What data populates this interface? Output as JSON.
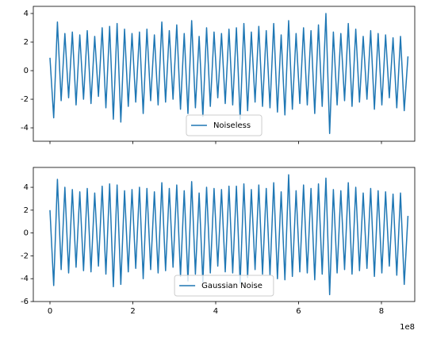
{
  "chart_data": [
    {
      "type": "line",
      "x": [
        0,
        9000000,
        18000000,
        27000000,
        36000000,
        45000000,
        54000000,
        63000000,
        72000000,
        81000000,
        90000000,
        99000000,
        108000000,
        117000000,
        126000000,
        135000000,
        144000000,
        153000000,
        162000000,
        171000000,
        180000000,
        189000000,
        198000000,
        207000000,
        216000000,
        225000000,
        234000000,
        243000000,
        252000000,
        261000000,
        270000000,
        279000000,
        288000000,
        297000000,
        306000000,
        315000000,
        324000000,
        333000000,
        342000000,
        351000000,
        360000000,
        369000000,
        378000000,
        387000000,
        396000000,
        405000000,
        414000000,
        423000000,
        432000000,
        441000000,
        450000000,
        459000000,
        468000000,
        477000000,
        486000000,
        495000000,
        504000000,
        513000000,
        522000000,
        531000000,
        540000000,
        549000000,
        558000000,
        567000000,
        576000000,
        585000000,
        594000000,
        603000000,
        612000000,
        621000000,
        630000000,
        639000000,
        648000000,
        657000000,
        666000000,
        675000000,
        684000000,
        693000000,
        702000000,
        711000000,
        720000000,
        729000000,
        738000000,
        747000000,
        756000000,
        765000000,
        774000000,
        783000000,
        792000000,
        801000000,
        810000000,
        819000000,
        828000000,
        837000000,
        846000000,
        855000000,
        864000000
      ],
      "series": [
        {
          "name": "Noiseless",
          "color": "#1f77b4",
          "values": [
            0.9,
            -3.3,
            3.4,
            -2.1,
            2.6,
            -1.9,
            2.7,
            -2.4,
            2.5,
            -2.0,
            2.8,
            -2.3,
            2.4,
            -1.8,
            3.0,
            -2.6,
            3.1,
            -3.4,
            3.3,
            -3.6,
            2.9,
            -2.5,
            2.6,
            -2.2,
            2.7,
            -3.0,
            2.9,
            -2.1,
            2.5,
            -2.4,
            3.4,
            -2.2,
            2.8,
            -2.0,
            3.2,
            -2.7,
            2.6,
            -3.0,
            3.5,
            -2.6,
            2.4,
            -3.2,
            3.0,
            -2.5,
            2.7,
            -1.9,
            2.6,
            -2.3,
            2.9,
            -2.4,
            3.0,
            -3.4,
            3.3,
            -2.8,
            2.7,
            -2.2,
            3.1,
            -2.5,
            2.8,
            -2.6,
            3.3,
            -2.9,
            2.5,
            -3.1,
            3.5,
            -2.7,
            2.6,
            -2.3,
            3.0,
            -2.4,
            2.8,
            -3.0,
            3.2,
            -2.5,
            4.0,
            -4.4,
            2.7,
            -2.4,
            2.6,
            -2.1,
            3.3,
            -2.5,
            2.9,
            -2.2,
            2.4,
            -2.0,
            2.8,
            -2.7,
            2.6,
            -2.4,
            2.5,
            -1.9,
            2.3,
            -2.6,
            2.4,
            -2.8,
            1.0
          ]
        }
      ],
      "xlim": [
        -40200000,
        880400000
      ],
      "xticks": [
        0,
        200000000,
        400000000,
        600000000,
        800000000
      ],
      "ylim": [
        -4.94,
        4.5
      ],
      "yticks": [
        -4,
        -2,
        0,
        2,
        4
      ],
      "legend": "lower center"
    },
    {
      "type": "line",
      "x": [
        0,
        9000000,
        18000000,
        27000000,
        36000000,
        45000000,
        54000000,
        63000000,
        72000000,
        81000000,
        90000000,
        99000000,
        108000000,
        117000000,
        126000000,
        135000000,
        144000000,
        153000000,
        162000000,
        171000000,
        180000000,
        189000000,
        198000000,
        207000000,
        216000000,
        225000000,
        234000000,
        243000000,
        252000000,
        261000000,
        270000000,
        279000000,
        288000000,
        297000000,
        306000000,
        315000000,
        324000000,
        333000000,
        342000000,
        351000000,
        360000000,
        369000000,
        378000000,
        387000000,
        396000000,
        405000000,
        414000000,
        423000000,
        432000000,
        441000000,
        450000000,
        459000000,
        468000000,
        477000000,
        486000000,
        495000000,
        504000000,
        513000000,
        522000000,
        531000000,
        540000000,
        549000000,
        558000000,
        567000000,
        576000000,
        585000000,
        594000000,
        603000000,
        612000000,
        621000000,
        630000000,
        639000000,
        648000000,
        657000000,
        666000000,
        675000000,
        684000000,
        693000000,
        702000000,
        711000000,
        720000000,
        729000000,
        738000000,
        747000000,
        756000000,
        765000000,
        774000000,
        783000000,
        792000000,
        801000000,
        810000000,
        819000000,
        828000000,
        837000000,
        846000000,
        855000000,
        864000000
      ],
      "series": [
        {
          "name": "Gaussian Noise",
          "color": "#1f77b4",
          "values": [
            2.0,
            -4.6,
            4.7,
            -3.2,
            4.0,
            -3.5,
            3.8,
            -3.0,
            3.6,
            -3.3,
            3.9,
            -3.4,
            3.5,
            -2.9,
            4.1,
            -3.6,
            4.3,
            -4.7,
            4.2,
            -4.5,
            3.7,
            -3.4,
            3.8,
            -3.1,
            4.0,
            -4.0,
            3.9,
            -3.2,
            3.6,
            -3.5,
            4.4,
            -3.3,
            3.9,
            -3.0,
            4.2,
            -3.8,
            3.7,
            -4.2,
            4.5,
            -3.6,
            3.5,
            -4.3,
            4.0,
            -3.5,
            3.9,
            -2.9,
            3.8,
            -3.4,
            4.1,
            -3.5,
            4.1,
            -4.4,
            4.3,
            -3.9,
            3.8,
            -3.2,
            4.2,
            -3.6,
            3.9,
            -3.7,
            4.4,
            -4.0,
            3.6,
            -4.1,
            5.1,
            -3.8,
            3.7,
            -3.4,
            4.2,
            -3.5,
            3.9,
            -4.1,
            4.3,
            -3.6,
            4.8,
            -5.4,
            3.8,
            -3.5,
            3.7,
            -3.2,
            4.4,
            -3.6,
            4.0,
            -3.3,
            3.5,
            -3.1,
            3.9,
            -3.8,
            3.7,
            -3.5,
            3.6,
            -2.9,
            3.4,
            -3.7,
            3.5,
            -4.5,
            1.5
          ]
        }
      ],
      "xlim": [
        -40200000,
        880400000
      ],
      "xticks": [
        {
          "value": 0,
          "label": "0"
        },
        {
          "value": 200000000,
          "label": "2"
        },
        {
          "value": 400000000,
          "label": "4"
        },
        {
          "value": 600000000,
          "label": "6"
        },
        {
          "value": 800000000,
          "label": "8"
        }
      ],
      "x_offset_label": "1e8",
      "ylim": [
        -6,
        5.74
      ],
      "yticks": [
        -6,
        -4,
        -2,
        0,
        2,
        4
      ],
      "legend": "lower center"
    }
  ]
}
